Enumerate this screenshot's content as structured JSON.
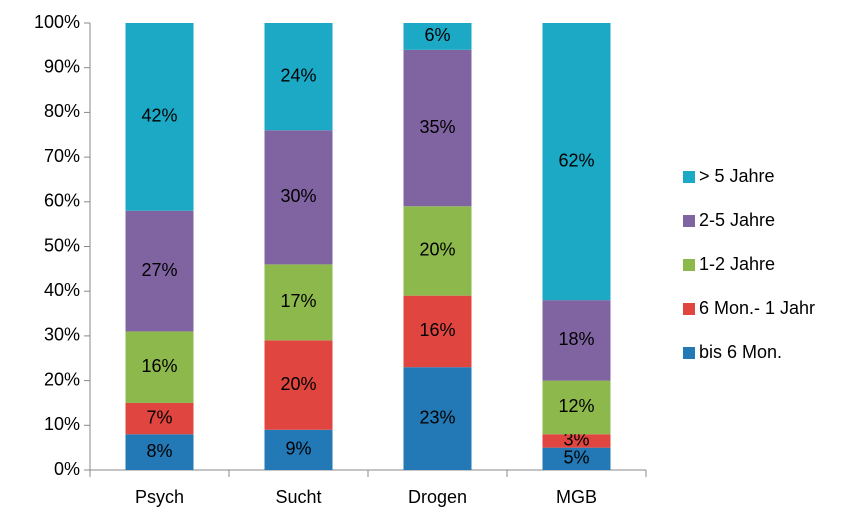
{
  "chart_data": {
    "type": "stacked_bar_100",
    "categories": [
      "Psych",
      "Sucht",
      "Drogen",
      "MGB"
    ],
    "series": [
      {
        "name": "bis 6 Mon.",
        "color": "#2279b5",
        "values": [
          8,
          9,
          23,
          5
        ],
        "value_labels": [
          "8%",
          "9%",
          "23%",
          "5%"
        ]
      },
      {
        "name": "6 Mon.- 1 Jahr",
        "color": "#e0463f",
        "values": [
          7,
          20,
          16,
          3
        ],
        "value_labels": [
          "7%",
          "20%",
          "16%",
          "3%"
        ]
      },
      {
        "name": "1-2 Jahre",
        "color": "#8db84c",
        "values": [
          16,
          17,
          20,
          12
        ],
        "value_labels": [
          "16%",
          "17%",
          "20%",
          "12%"
        ]
      },
      {
        "name": "2-5 Jahre",
        "color": "#8064a2",
        "values": [
          27,
          30,
          35,
          18
        ],
        "value_labels": [
          "27%",
          "30%",
          "35%",
          "18%"
        ]
      },
      {
        "name": "> 5 Jahre",
        "color": "#1ba9c5",
        "values": [
          42,
          24,
          6,
          62
        ],
        "value_labels": [
          "42%",
          "24%",
          "6%",
          "62%"
        ]
      }
    ],
    "ylim": [
      0,
      100
    ],
    "yticks": [
      {
        "value": 0,
        "label": "0%"
      },
      {
        "value": 10,
        "label": "10%"
      },
      {
        "value": 20,
        "label": "20%"
      },
      {
        "value": 30,
        "label": "30%"
      },
      {
        "value": 40,
        "label": "40%"
      },
      {
        "value": 50,
        "label": "50%"
      },
      {
        "value": 60,
        "label": "60%"
      },
      {
        "value": 70,
        "label": "70%"
      },
      {
        "value": 80,
        "label": "80%"
      },
      {
        "value": 90,
        "label": "90%"
      },
      {
        "value": 100,
        "label": "100%"
      }
    ],
    "legend": "right"
  }
}
